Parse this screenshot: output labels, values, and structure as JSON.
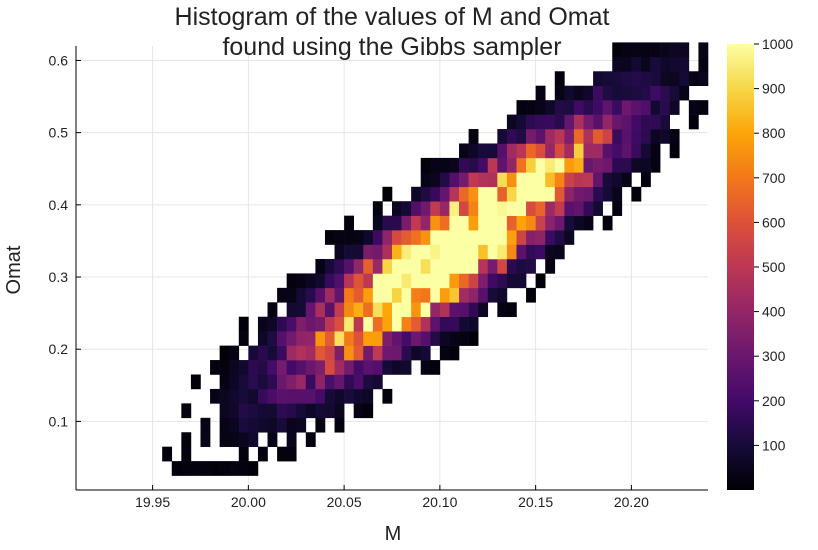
{
  "chart_data": {
    "type": "heatmap",
    "title": [
      "Histogram of the values of M and Omat",
      "found using the Gibbs sampler"
    ],
    "xlabel": "M",
    "ylabel": "Omat",
    "xlim": [
      19.91,
      20.24
    ],
    "ylim": [
      0.005,
      0.62
    ],
    "xticks": [
      19.95,
      20.0,
      20.05,
      20.1,
      20.15,
      20.2
    ],
    "xtick_labels": [
      "19.95",
      "20.00",
      "20.05",
      "20.10",
      "20.15",
      "20.20"
    ],
    "yticks": [
      0.1,
      0.2,
      0.3,
      0.4,
      0.5,
      0.6
    ],
    "ytick_labels": [
      "0.1",
      "0.2",
      "0.3",
      "0.4",
      "0.5",
      "0.6"
    ],
    "grid": true,
    "colorbar": {
      "colormap": "inferno",
      "range": [
        0,
        1000
      ],
      "ticks": [
        100,
        200,
        300,
        400,
        500,
        600,
        700,
        800,
        900,
        1000
      ],
      "tick_labels": [
        "100",
        "200",
        "300",
        "400",
        "500",
        "600",
        "700",
        "800",
        "900",
        "1000"
      ],
      "placement": "right"
    },
    "bins": {
      "x_start": 19.91,
      "x_width": 0.005,
      "y_start": 0.005,
      "y_width": 0.02,
      "center_a": {
        "x": 20.09,
        "y": 0.305
      },
      "center_b": {
        "x": 20.13,
        "y": 0.385
      },
      "approx_max_count": 1000
    }
  }
}
